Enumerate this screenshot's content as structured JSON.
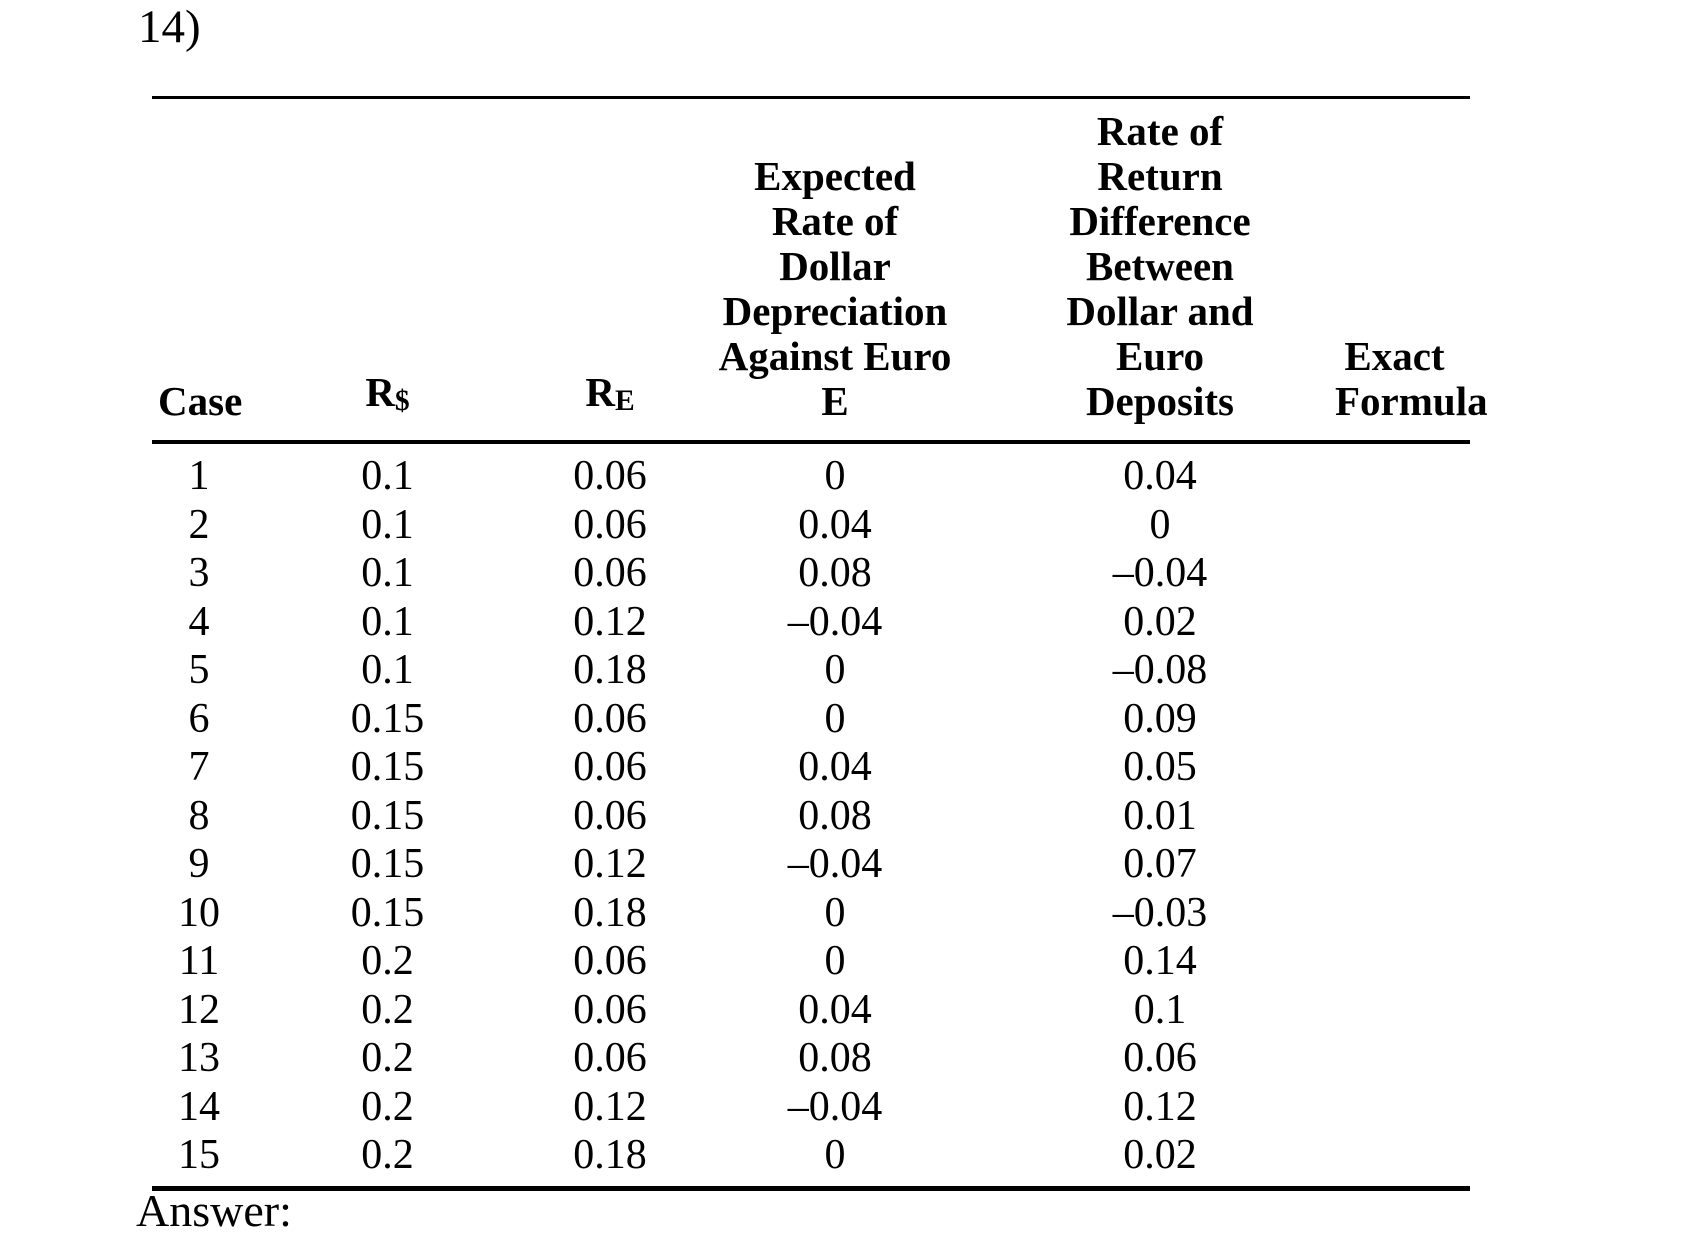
{
  "page": {
    "question_label": "14)",
    "answer_label": "Answer:"
  },
  "table": {
    "headers": {
      "case": "Case",
      "r_dollar": {
        "base": "R",
        "sub": "$"
      },
      "r_euro": {
        "base": "R",
        "sub": "E"
      },
      "expected_depreciation": "Expected\nRate of\nDollar\nDepreciation\nAgainst Euro\nE",
      "return_difference": "Rate of\nReturn\nDifference\nBetween\nDollar and\nEuro\nDeposits",
      "exact_formula": "Exact\nFormula"
    },
    "rows": [
      [
        "1",
        "0.1",
        "0.06",
        "0",
        "0.04",
        ""
      ],
      [
        "2",
        "0.1",
        "0.06",
        "0.04",
        "0",
        ""
      ],
      [
        "3",
        "0.1",
        "0.06",
        "0.08",
        "–0.04",
        ""
      ],
      [
        "4",
        "0.1",
        "0.12",
        "–0.04",
        "0.02",
        ""
      ],
      [
        "5",
        "0.1",
        "0.18",
        "0",
        "–0.08",
        ""
      ],
      [
        "6",
        "0.15",
        "0.06",
        "0",
        "0.09",
        ""
      ],
      [
        "7",
        "0.15",
        "0.06",
        "0.04",
        "0.05",
        ""
      ],
      [
        "8",
        "0.15",
        "0.06",
        "0.08",
        "0.01",
        ""
      ],
      [
        "9",
        "0.15",
        "0.12",
        "–0.04",
        "0.07",
        ""
      ],
      [
        "10",
        "0.15",
        "0.18",
        "0",
        "–0.03",
        ""
      ],
      [
        "11",
        "0.2",
        "0.06",
        "0",
        "0.14",
        ""
      ],
      [
        "12",
        "0.2",
        "0.06",
        "0.04",
        "0.1",
        ""
      ],
      [
        "13",
        "0.2",
        "0.06",
        "0.08",
        "0.06",
        ""
      ],
      [
        "14",
        "0.2",
        "0.12",
        "–0.04",
        "0.12",
        ""
      ],
      [
        "15",
        "0.2",
        "0.18",
        "0",
        "0.02",
        ""
      ]
    ]
  }
}
